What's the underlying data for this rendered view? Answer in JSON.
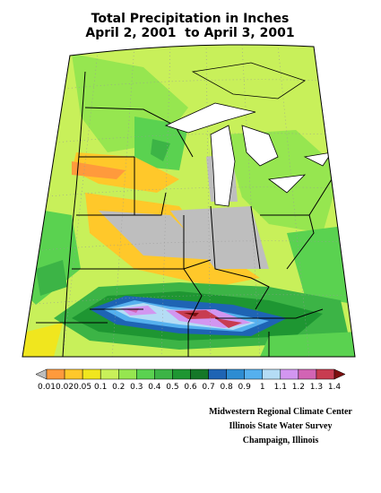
{
  "header": {
    "title": "Total Precipitation in Inches",
    "subtitle": "April 2, 2001  to April 3, 2001"
  },
  "legend": {
    "labels": [
      "0.01",
      "0.02",
      "0.05",
      "0.1",
      "0.2",
      "0.3",
      "0.4",
      "0.5",
      "0.6",
      "0.7",
      "0.8",
      "0.9",
      "1",
      "1.1",
      "1.2",
      "1.3",
      "1.4"
    ],
    "colors": [
      "#bebebe",
      "#ff9a3c",
      "#ffc82a",
      "#f0e61e",
      "#c8f05a",
      "#96e650",
      "#5ad250",
      "#3cb446",
      "#1e9632",
      "#147828",
      "#1e64b4",
      "#2d8cd2",
      "#55b0ee",
      "#b4dcf5",
      "#d296f0",
      "#d264b4",
      "#c83c50",
      "#7d0f0f"
    ]
  },
  "credits": [
    "Midwestern Regional Climate Center",
    "Illinois State Water Survey",
    "Champaign, Illinois"
  ]
}
